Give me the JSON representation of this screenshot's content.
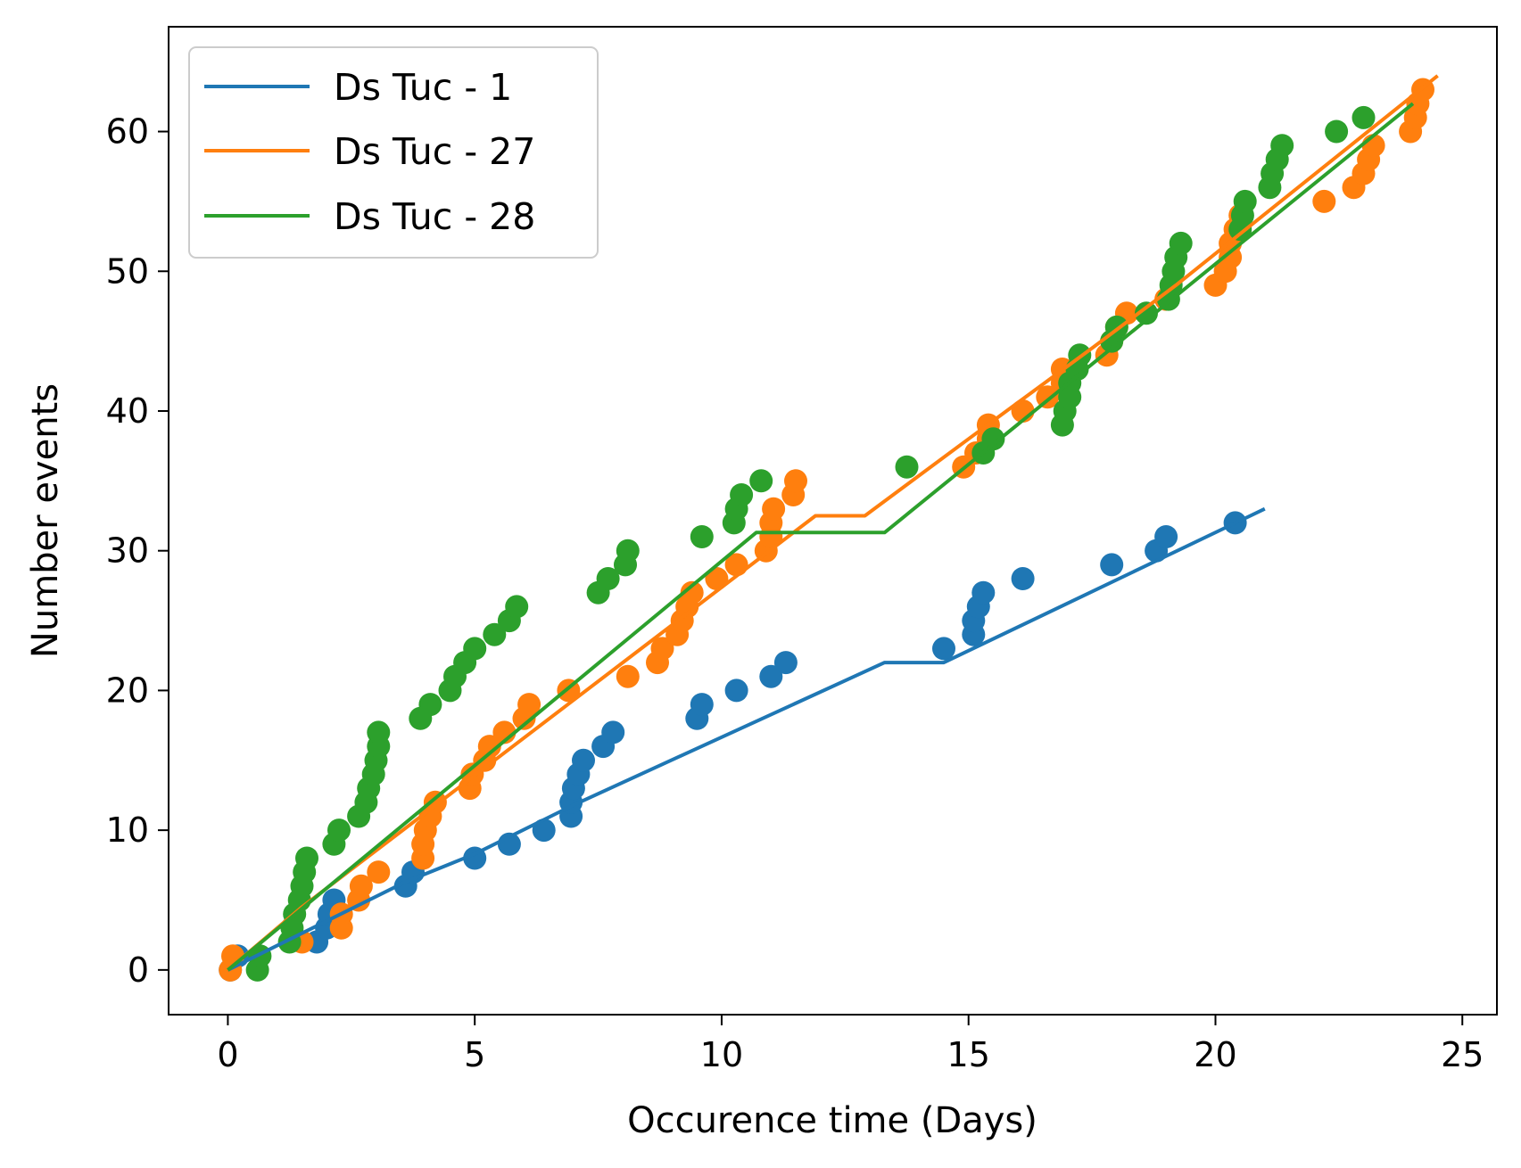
{
  "chart_data": {
    "type": "scatter",
    "title": "",
    "xlabel": "Occurence time (Days)",
    "ylabel": "Number events",
    "xlim": [
      -1.2,
      25.7
    ],
    "ylim": [
      -3.2,
      67.5
    ],
    "xticks": [
      0,
      5,
      10,
      15,
      20,
      25
    ],
    "yticks": [
      0,
      10,
      20,
      30,
      40,
      50,
      60
    ],
    "grid": false,
    "legend_position": "upper-left",
    "series": [
      {
        "name": "Ds Tuc - 1",
        "color": "#1f77b4",
        "points": [
          [
            0.05,
            0
          ],
          [
            0.2,
            1
          ],
          [
            1.8,
            2
          ],
          [
            2.0,
            3
          ],
          [
            2.05,
            4
          ],
          [
            2.15,
            5
          ],
          [
            3.6,
            6
          ],
          [
            3.75,
            7
          ],
          [
            5.0,
            8
          ],
          [
            5.7,
            9
          ],
          [
            6.4,
            10
          ],
          [
            6.95,
            11
          ],
          [
            6.95,
            12
          ],
          [
            7.0,
            13
          ],
          [
            7.1,
            14
          ],
          [
            7.2,
            15
          ],
          [
            7.6,
            16
          ],
          [
            7.8,
            17
          ],
          [
            9.5,
            18
          ],
          [
            9.6,
            19
          ],
          [
            10.3,
            20
          ],
          [
            11.0,
            21
          ],
          [
            11.3,
            22
          ],
          [
            14.5,
            23
          ],
          [
            15.1,
            24
          ],
          [
            15.1,
            25
          ],
          [
            15.2,
            26
          ],
          [
            15.3,
            27
          ],
          [
            16.1,
            28
          ],
          [
            17.9,
            29
          ],
          [
            18.8,
            30
          ],
          [
            19.0,
            31
          ],
          [
            20.4,
            32
          ]
        ],
        "fit_line": [
          [
            0,
            0
          ],
          [
            3.6,
            6.3
          ],
          [
            5.0,
            8.3
          ],
          [
            7.0,
            11.8
          ],
          [
            13.3,
            22
          ],
          [
            14.5,
            22
          ],
          [
            21.0,
            33
          ]
        ]
      },
      {
        "name": "Ds Tuc - 27",
        "color": "#ff7f0e",
        "points": [
          [
            0.05,
            0
          ],
          [
            0.1,
            1
          ],
          [
            1.5,
            2
          ],
          [
            2.3,
            3
          ],
          [
            2.3,
            4
          ],
          [
            2.65,
            5
          ],
          [
            2.7,
            6
          ],
          [
            3.05,
            7
          ],
          [
            3.95,
            8
          ],
          [
            3.95,
            9
          ],
          [
            4.0,
            10
          ],
          [
            4.1,
            11
          ],
          [
            4.2,
            12
          ],
          [
            4.9,
            13
          ],
          [
            4.95,
            14
          ],
          [
            5.2,
            15
          ],
          [
            5.3,
            16
          ],
          [
            5.6,
            17
          ],
          [
            6.0,
            18
          ],
          [
            6.1,
            19
          ],
          [
            6.9,
            20
          ],
          [
            8.1,
            21
          ],
          [
            8.7,
            22
          ],
          [
            8.8,
            23
          ],
          [
            9.1,
            24
          ],
          [
            9.2,
            25
          ],
          [
            9.3,
            26
          ],
          [
            9.4,
            27
          ],
          [
            9.9,
            28
          ],
          [
            10.3,
            29
          ],
          [
            10.9,
            30
          ],
          [
            11.0,
            31
          ],
          [
            11.0,
            32
          ],
          [
            11.05,
            33
          ],
          [
            11.45,
            34
          ],
          [
            11.5,
            35
          ],
          [
            14.9,
            36
          ],
          [
            15.15,
            37
          ],
          [
            15.4,
            38
          ],
          [
            15.4,
            39
          ],
          [
            16.1,
            40
          ],
          [
            16.6,
            41
          ],
          [
            16.9,
            42
          ],
          [
            16.9,
            43
          ],
          [
            17.8,
            44
          ],
          [
            17.9,
            45
          ],
          [
            18.0,
            46
          ],
          [
            18.2,
            47
          ],
          [
            19.0,
            48
          ],
          [
            20.0,
            49
          ],
          [
            20.2,
            50
          ],
          [
            20.3,
            51
          ],
          [
            20.3,
            52
          ],
          [
            20.4,
            53
          ],
          [
            20.5,
            54
          ],
          [
            22.2,
            55
          ],
          [
            22.8,
            56
          ],
          [
            23.0,
            57
          ],
          [
            23.1,
            58
          ],
          [
            23.2,
            59
          ],
          [
            23.95,
            60
          ],
          [
            24.05,
            61
          ],
          [
            24.1,
            62
          ],
          [
            24.2,
            63
          ]
        ],
        "fit_line": [
          [
            0,
            0
          ],
          [
            1.5,
            4.5
          ],
          [
            11.9,
            32.5
          ],
          [
            12.9,
            32.5
          ],
          [
            15.0,
            38
          ],
          [
            17.5,
            44.5
          ],
          [
            19.2,
            49
          ],
          [
            24.5,
            64
          ]
        ]
      },
      {
        "name": "Ds Tuc - 28",
        "color": "#2ca02c",
        "points": [
          [
            0.6,
            0
          ],
          [
            0.65,
            1
          ],
          [
            1.25,
            2
          ],
          [
            1.3,
            3
          ],
          [
            1.35,
            4
          ],
          [
            1.45,
            5
          ],
          [
            1.5,
            6
          ],
          [
            1.55,
            7
          ],
          [
            1.6,
            8
          ],
          [
            2.15,
            9
          ],
          [
            2.25,
            10
          ],
          [
            2.65,
            11
          ],
          [
            2.8,
            12
          ],
          [
            2.85,
            13
          ],
          [
            2.95,
            14
          ],
          [
            3.0,
            15
          ],
          [
            3.05,
            16
          ],
          [
            3.05,
            17
          ],
          [
            3.9,
            18
          ],
          [
            4.1,
            19
          ],
          [
            4.5,
            20
          ],
          [
            4.6,
            21
          ],
          [
            4.8,
            22
          ],
          [
            5.0,
            23
          ],
          [
            5.4,
            24
          ],
          [
            5.7,
            25
          ],
          [
            5.85,
            26
          ],
          [
            7.5,
            27
          ],
          [
            7.7,
            28
          ],
          [
            8.05,
            29
          ],
          [
            8.1,
            30
          ],
          [
            9.6,
            31
          ],
          [
            10.25,
            32
          ],
          [
            10.3,
            33
          ],
          [
            10.4,
            34
          ],
          [
            10.8,
            35
          ],
          [
            13.75,
            36
          ],
          [
            15.3,
            37
          ],
          [
            15.5,
            38
          ],
          [
            16.9,
            39
          ],
          [
            16.95,
            40
          ],
          [
            17.05,
            41
          ],
          [
            17.05,
            42
          ],
          [
            17.2,
            43
          ],
          [
            17.25,
            44
          ],
          [
            17.9,
            45
          ],
          [
            18.0,
            46
          ],
          [
            18.6,
            47
          ],
          [
            19.05,
            48
          ],
          [
            19.1,
            49
          ],
          [
            19.15,
            50
          ],
          [
            19.2,
            51
          ],
          [
            19.3,
            52
          ],
          [
            20.5,
            53
          ],
          [
            20.55,
            54
          ],
          [
            20.6,
            55
          ],
          [
            21.1,
            56
          ],
          [
            21.15,
            57
          ],
          [
            21.25,
            58
          ],
          [
            21.35,
            59
          ],
          [
            22.45,
            60
          ],
          [
            23.0,
            61
          ]
        ],
        "fit_line": [
          [
            0,
            0
          ],
          [
            10.7,
            31.3
          ],
          [
            13.3,
            31.3
          ],
          [
            24.0,
            62
          ]
        ]
      }
    ]
  }
}
